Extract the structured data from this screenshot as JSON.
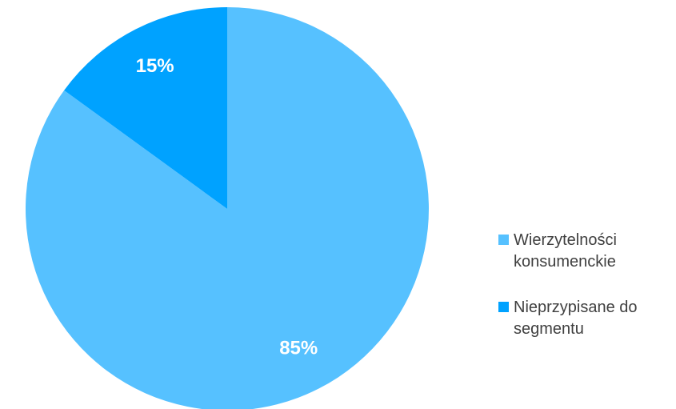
{
  "chart_data": {
    "type": "pie",
    "categories": [
      "Wierzytelności konsumenckie",
      "Nieprzypisane do segmentu"
    ],
    "values": [
      85,
      15
    ],
    "data_labels": [
      "85%",
      "15%"
    ],
    "colors": [
      "#56C1FF",
      "#00A2FF"
    ],
    "title": "",
    "legend_position": "right"
  },
  "legend": {
    "items": [
      {
        "line1": "Wierzytelności",
        "line2": "konsumenckie"
      },
      {
        "line1": "Nieprzypisane do",
        "line2": "segmentu"
      }
    ]
  }
}
